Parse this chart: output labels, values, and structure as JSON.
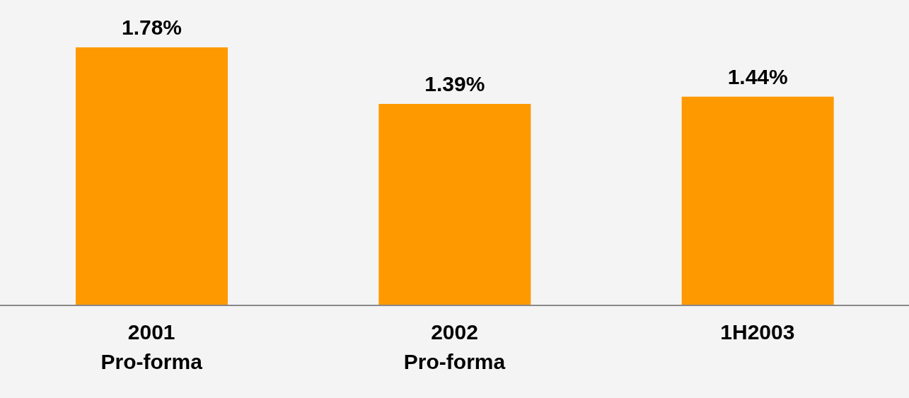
{
  "chart_data": {
    "type": "bar",
    "categories": [
      "2001\nPro-forma",
      "2002\nPro-forma",
      "1H2003"
    ],
    "values": [
      1.78,
      1.39,
      1.44
    ],
    "color": "#ff9900",
    "value_labels": [
      "1.78%",
      "1.39%",
      "1.44%"
    ],
    "grid": false,
    "legend": false
  }
}
